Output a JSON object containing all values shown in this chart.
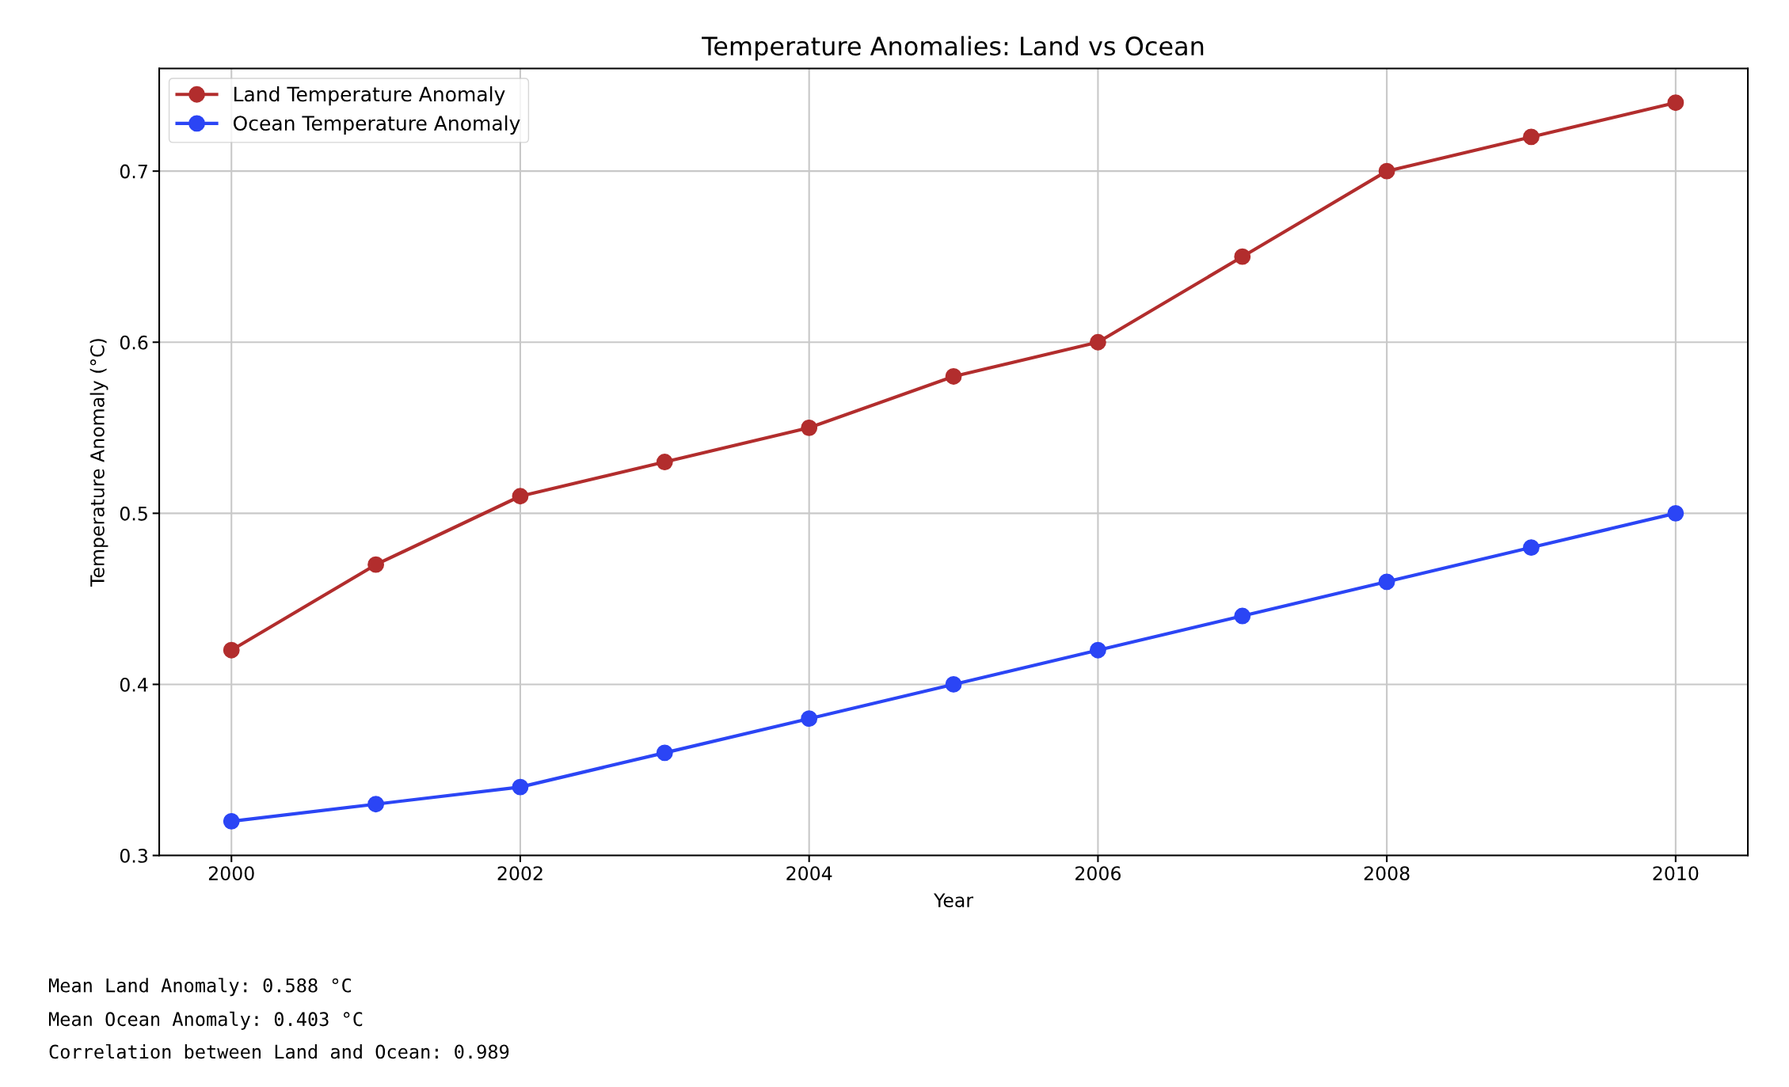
{
  "chart_data": {
    "type": "line",
    "title": "Temperature Anomalies: Land vs Ocean",
    "xlabel": "Year",
    "ylabel": "Temperature Anomaly (°C)",
    "x": [
      2000,
      2001,
      2002,
      2003,
      2004,
      2005,
      2006,
      2007,
      2008,
      2009,
      2010
    ],
    "series": [
      {
        "name": "Land Temperature Anomaly",
        "color": "#b22d2d",
        "values": [
          0.42,
          0.47,
          0.51,
          0.53,
          0.55,
          0.58,
          0.6,
          0.65,
          0.7,
          0.72,
          0.74
        ]
      },
      {
        "name": "Ocean Temperature Anomaly",
        "color": "#2b45f5",
        "values": [
          0.32,
          0.33,
          0.34,
          0.36,
          0.38,
          0.4,
          0.42,
          0.44,
          0.46,
          0.48,
          0.5
        ]
      }
    ],
    "xlim": [
      1999.5,
      2010.5
    ],
    "xticks": [
      2000,
      2002,
      2004,
      2006,
      2008,
      2010
    ],
    "ylim": [
      0.3,
      0.76
    ],
    "yticks": [
      0.3,
      0.4,
      0.5,
      0.6,
      0.7
    ],
    "grid": true,
    "legend": "top left",
    "marker": "circle",
    "line_style": "solid",
    "annotations": [
      "Mean Land Anomaly: 0.588 °C",
      "Mean Ocean Anomaly: 0.403 °C",
      "Correlation between Land and Ocean: 0.989"
    ]
  }
}
